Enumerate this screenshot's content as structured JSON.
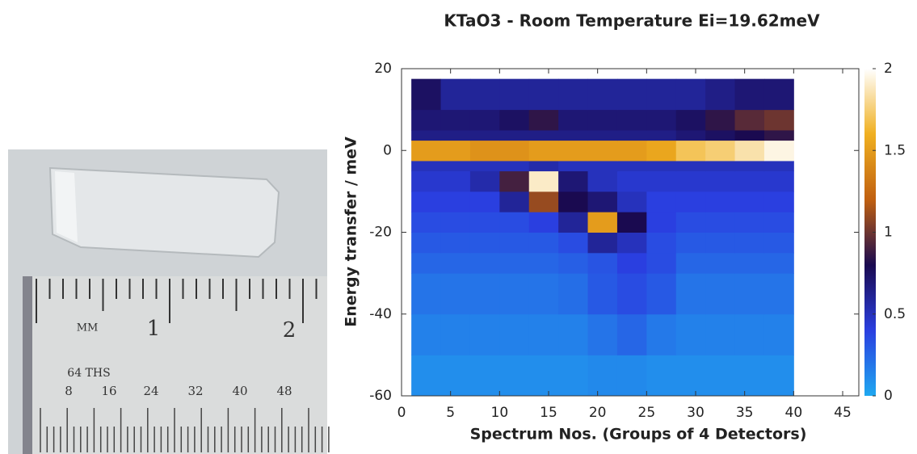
{
  "chart_data": {
    "type": "heatmap",
    "title": "KTaO3 - Room Temperature Ei=19.62meV",
    "xlabel": "Spectrum Nos. (Groups of 4 Detectors)",
    "ylabel": "Energy transfer / meV",
    "xlim": [
      0,
      45
    ],
    "ylim": [
      -60,
      20
    ],
    "xticks": [
      0,
      5,
      10,
      15,
      20,
      25,
      30,
      35,
      40,
      45
    ],
    "yticks": [
      -60,
      -40,
      -20,
      0,
      20
    ],
    "x_edges": [
      1,
      4,
      7,
      10,
      13,
      16,
      19,
      22,
      25,
      28,
      31,
      34,
      37,
      40
    ],
    "y_edges": [
      -60,
      -50,
      -40,
      -30,
      -25,
      -20,
      -15,
      -10,
      -5,
      -2.5,
      2.5,
      5,
      10,
      17.5
    ],
    "values": [
      [
        0.1,
        0.1,
        0.1,
        0.1,
        0.1,
        0.1,
        0.12,
        0.12,
        0.1,
        0.1,
        0.1,
        0.1,
        0.1
      ],
      [
        0.15,
        0.15,
        0.15,
        0.15,
        0.15,
        0.15,
        0.2,
        0.25,
        0.18,
        0.15,
        0.15,
        0.15,
        0.15
      ],
      [
        0.2,
        0.2,
        0.2,
        0.2,
        0.2,
        0.22,
        0.3,
        0.35,
        0.3,
        0.2,
        0.2,
        0.2,
        0.2
      ],
      [
        0.25,
        0.25,
        0.25,
        0.25,
        0.25,
        0.28,
        0.32,
        0.4,
        0.35,
        0.25,
        0.25,
        0.25,
        0.25
      ],
      [
        0.3,
        0.3,
        0.3,
        0.3,
        0.3,
        0.35,
        0.6,
        0.5,
        0.35,
        0.3,
        0.3,
        0.3,
        0.3
      ],
      [
        0.35,
        0.35,
        0.35,
        0.35,
        0.4,
        0.6,
        1.5,
        0.8,
        0.4,
        0.35,
        0.35,
        0.35,
        0.35
      ],
      [
        0.4,
        0.4,
        0.4,
        0.6,
        1.1,
        0.8,
        0.7,
        0.5,
        0.4,
        0.4,
        0.4,
        0.4,
        0.4
      ],
      [
        0.45,
        0.45,
        0.55,
        0.9,
        1.9,
        0.7,
        0.5,
        0.45,
        0.45,
        0.45,
        0.45,
        0.45,
        0.45
      ],
      [
        0.5,
        0.5,
        0.5,
        0.5,
        0.55,
        0.5,
        0.5,
        0.5,
        0.5,
        0.5,
        0.5,
        0.5,
        0.5
      ],
      [
        1.5,
        1.5,
        1.45,
        1.45,
        1.5,
        1.5,
        1.5,
        1.5,
        1.55,
        1.7,
        1.75,
        1.85,
        1.95
      ],
      [
        0.65,
        0.65,
        0.65,
        0.65,
        0.65,
        0.65,
        0.65,
        0.65,
        0.65,
        0.7,
        0.75,
        0.8,
        0.85
      ],
      [
        0.7,
        0.7,
        0.7,
        0.75,
        0.85,
        0.7,
        0.7,
        0.7,
        0.7,
        0.75,
        0.85,
        0.95,
        1.0
      ],
      [
        0.75,
        0.6,
        0.6,
        0.6,
        0.6,
        0.6,
        0.6,
        0.6,
        0.6,
        0.6,
        0.65,
        0.7,
        0.7
      ]
    ],
    "clim": [
      0,
      2
    ],
    "cticks": [
      0,
      0.5,
      1,
      1.5,
      2
    ],
    "colormap": [
      "#1fa8f0",
      "#2a3fe0",
      "#1a0a50",
      "#c06010",
      "#f0b020",
      "#ffffff"
    ]
  },
  "photo": {
    "labels": [
      "MM",
      "1",
      "2",
      "64 THS",
      "8",
      "16",
      "24",
      "32",
      "40",
      "48"
    ]
  }
}
